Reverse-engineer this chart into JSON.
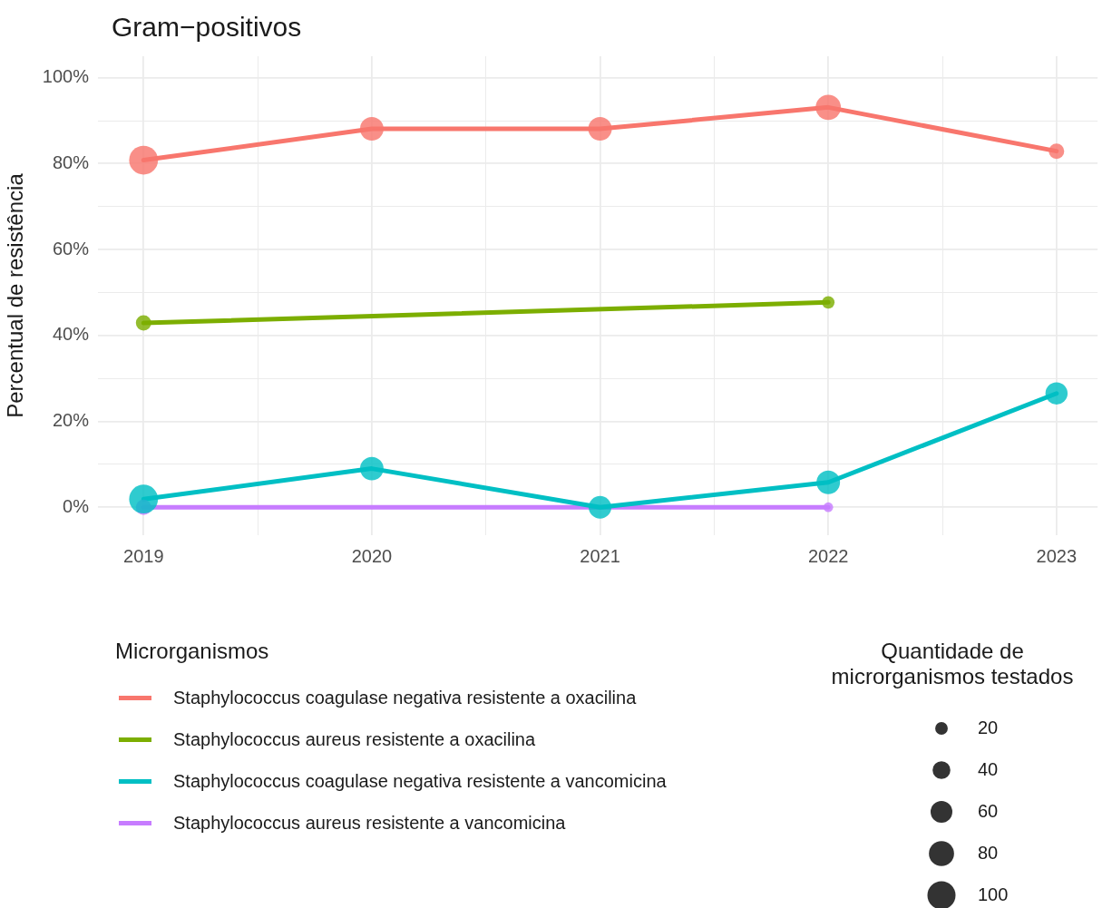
{
  "chart_data": {
    "type": "bubble",
    "title": "Gram−positivos",
    "ylabel": "Percentual de resistência",
    "legend_title": "Microrganismos",
    "legend": "bottom",
    "grid": true,
    "marker": "circle",
    "xlim": [
      2018.8,
      2023.18
    ],
    "xticks": [
      2019,
      2020,
      2021,
      2022,
      2023,
      {
        "value": 2019.5,
        "label": null
      },
      {
        "value": 2020.5,
        "label": null
      },
      {
        "value": 2021.5,
        "label": null
      },
      {
        "value": 2022.5,
        "label": null
      }
    ],
    "ylim": [
      -6.5,
      105
    ],
    "yticks": [
      {
        "value": 0,
        "label": "0%"
      },
      {
        "value": 20,
        "label": "20%"
      },
      {
        "value": 40,
        "label": "40%"
      },
      {
        "value": 60,
        "label": "60%"
      },
      {
        "value": 80,
        "label": "80%"
      },
      {
        "value": 100,
        "label": "100%"
      },
      {
        "value": 10,
        "label": null
      },
      {
        "value": 30,
        "label": null
      },
      {
        "value": 50,
        "label": null
      },
      {
        "value": 70,
        "label": null
      },
      {
        "value": 90,
        "label": null
      }
    ],
    "series": [
      {
        "name": "Staphylococcus coagulase negativa resistente a  oxacilina",
        "color": "#f8766d",
        "x": [
          2019,
          2020,
          2021,
          2022,
          2023
        ],
        "values": [
          80.8,
          88.1,
          88.1,
          93.1,
          82.9
        ],
        "sizes": [
          105,
          70,
          70,
          80,
          30
        ]
      },
      {
        "name": "Staphylococcus aureus resistente a  oxacilina",
        "color": "#7cae00",
        "x": [
          2019,
          2022
        ],
        "values": [
          42.9,
          47.7
        ],
        "sizes": [
          30,
          20
        ]
      },
      {
        "name": "Staphylococcus coagulase negativa resistente a  vancomicina",
        "color": "#00bfc4",
        "x": [
          2019,
          2020,
          2021,
          2022,
          2023
        ],
        "values": [
          1.9,
          9.0,
          0,
          5.8,
          26.5
        ],
        "sizes": [
          105,
          70,
          65,
          70,
          62
        ]
      },
      {
        "name": "Staphylococcus aureus resistente a  vancomicina",
        "color": "#c77cff",
        "x": [
          2019,
          2022
        ],
        "values": [
          0,
          0
        ],
        "sizes": [
          30,
          12
        ]
      },
      {
        "type": "line",
        "marker": "none",
        "color": "#f8766d",
        "x": [
          2019,
          2020,
          2021,
          2022,
          2023
        ],
        "values": [
          80.8,
          88.1,
          88.1,
          93.1,
          82.9
        ]
      },
      {
        "type": "line",
        "marker": "none",
        "color": "#7cae00",
        "x": [
          2019,
          2022
        ],
        "values": [
          42.9,
          47.7
        ]
      },
      {
        "type": "line",
        "marker": "none",
        "color": "#00bfc4",
        "x": [
          2019,
          2020,
          2021,
          2022,
          2023
        ],
        "values": [
          1.9,
          9.0,
          0,
          5.8,
          26.5
        ]
      },
      {
        "type": "line",
        "marker": "none",
        "color": "#c77cff",
        "x": [
          2019,
          2022
        ],
        "values": [
          0,
          0
        ]
      }
    ],
    "size_legend": [
      20,
      40,
      60,
      80,
      100
    ],
    "annotations": [
      "Quantidade de\nmicrorganismos testados"
    ]
  }
}
